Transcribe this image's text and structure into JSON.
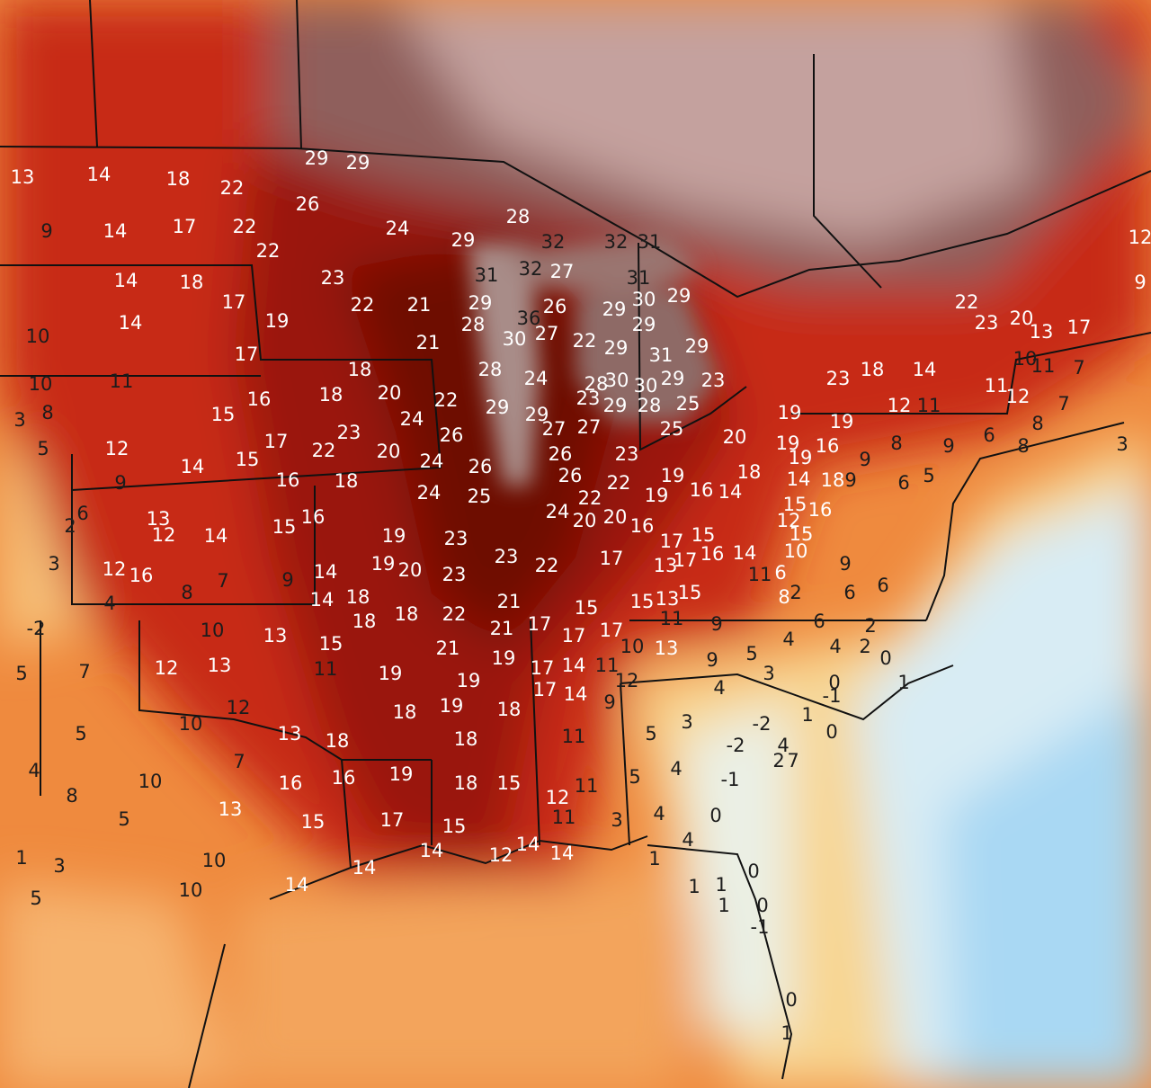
{
  "map_labels": [
    13,
    14,
    18,
    22,
    29,
    29,
    26,
    9,
    14,
    17,
    22,
    22,
    24,
    28,
    29,
    32,
    32,
    31,
    14,
    18,
    23,
    31,
    32,
    27,
    31,
    10,
    14,
    17,
    19,
    22,
    21,
    29,
    28,
    36,
    26,
    29,
    30,
    29,
    29,
    30,
    27,
    21,
    17,
    22,
    29,
    31,
    29,
    10,
    11,
    18,
    28,
    24,
    28,
    30,
    30,
    29,
    23,
    3,
    8,
    16,
    18,
    20,
    22,
    29,
    23,
    29,
    28,
    25,
    23,
    18,
    14,
    12,
    11,
    15,
    24,
    23,
    29,
    27,
    27,
    25,
    19,
    19,
    5,
    12,
    17,
    22,
    20,
    26,
    20,
    19,
    16,
    8,
    9,
    14,
    15,
    24,
    26,
    26,
    23,
    19,
    9,
    9,
    16,
    18,
    26,
    22,
    19,
    16,
    14,
    18,
    19,
    14,
    18,
    9,
    6,
    5,
    6,
    24,
    25,
    22,
    24,
    20,
    20,
    16,
    13,
    16,
    15,
    16,
    12,
    2,
    12,
    14,
    15,
    19,
    23,
    15,
    17,
    15,
    10,
    3,
    12,
    16,
    14,
    19,
    20,
    23,
    23,
    22,
    17,
    13,
    17,
    16,
    14,
    9,
    6,
    8,
    7,
    9,
    14,
    18,
    21,
    15,
    15,
    13,
    15,
    11,
    6,
    2,
    8,
    6,
    4,
    -2,
    10,
    13,
    18,
    18,
    22,
    21,
    17,
    17,
    17,
    11,
    9,
    6,
    2,
    5,
    7,
    12,
    13,
    15,
    11,
    19,
    21,
    19,
    17,
    14,
    11,
    10,
    13,
    9,
    5,
    4,
    4,
    2,
    0,
    12,
    10,
    18,
    19,
    19,
    18,
    17,
    14,
    9,
    12,
    4,
    3,
    0,
    -1,
    1,
    5,
    13,
    18,
    18,
    11,
    5,
    3,
    -2,
    1,
    -2,
    4,
    0,
    7,
    4,
    10,
    8,
    16,
    16,
    19,
    18,
    15,
    11,
    5,
    4,
    -1,
    2,
    7,
    5,
    13,
    15,
    17,
    15,
    12,
    11,
    3,
    4,
    0,
    1,
    3,
    10,
    14,
    12,
    14,
    14,
    4,
    5,
    10,
    14,
    14,
    1,
    1,
    1,
    1,
    0,
    0,
    -1,
    12,
    9,
    22,
    23,
    20,
    13,
    17,
    7,
    10,
    11,
    11,
    12,
    7,
    8,
    6,
    8,
    3,
    0,
    1
  ]
}
